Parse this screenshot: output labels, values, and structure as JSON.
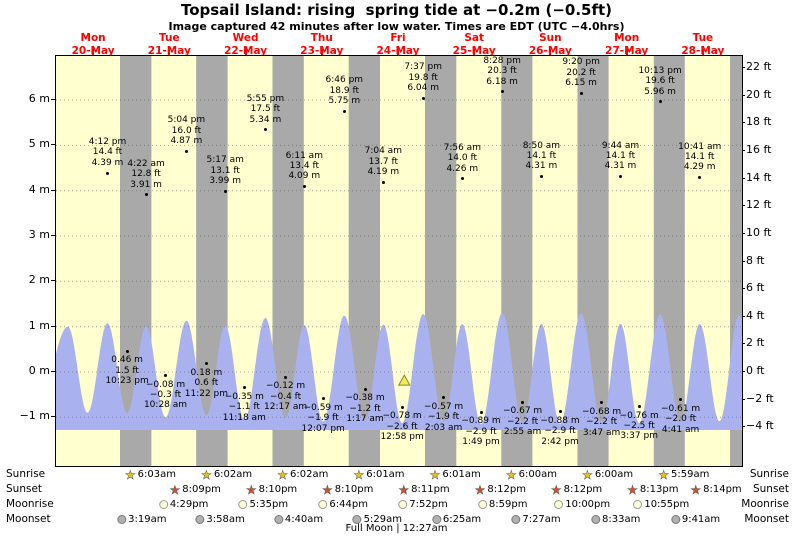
{
  "title": "Topsail Island: rising  spring tide at −0.2m (−0.5ft)",
  "subtitle": "Image captured 42 minutes after low water. Times are EDT (UTC −4.0hrs)",
  "colors": {
    "day_bg": "#ffffcf",
    "night_bg": "#a9a9a9",
    "wave": "#a9b2ef",
    "day_label_red": "#ff0000",
    "marker_yellow": "#f2ea5a",
    "sunrise_star": "#e8c227",
    "sunset_star": "#e8481f",
    "moonrise_fill": "#ffffd8",
    "moonset_fill": "#b0b0b0"
  },
  "day_labels": [
    {
      "name": "Mon",
      "date": "20-May"
    },
    {
      "name": "Tue",
      "date": "21-May"
    },
    {
      "name": "Wed",
      "date": "22-May"
    },
    {
      "name": "Thu",
      "date": "23-May"
    },
    {
      "name": "Fri",
      "date": "24-May"
    },
    {
      "name": "Sat",
      "date": "25-May"
    },
    {
      "name": "Sun",
      "date": "26-May"
    },
    {
      "name": "Mon",
      "date": "27-May"
    },
    {
      "name": "Tue",
      "date": "28-May"
    }
  ],
  "y_axis_left": [
    {
      "v": 6,
      "label": "6 m"
    },
    {
      "v": 5,
      "label": "5 m"
    },
    {
      "v": 4,
      "label": "4 m"
    },
    {
      "v": 3,
      "label": "3 m"
    },
    {
      "v": 2,
      "label": "2 m"
    },
    {
      "v": 1,
      "label": "1 m"
    },
    {
      "v": 0,
      "label": "0 m"
    },
    {
      "v": -1,
      "label": "−1 m"
    }
  ],
  "y_axis_right": [
    {
      "v": 22,
      "label": "22 ft"
    },
    {
      "v": 20,
      "label": "20 ft"
    },
    {
      "v": 18,
      "label": "18 ft"
    },
    {
      "v": 16,
      "label": "16 ft"
    },
    {
      "v": 14,
      "label": "14 ft"
    },
    {
      "v": 12,
      "label": "12 ft"
    },
    {
      "v": 10,
      "label": "10 ft"
    },
    {
      "v": 8,
      "label": "8 ft"
    },
    {
      "v": 6,
      "label": "6 ft"
    },
    {
      "v": 4,
      "label": "4 ft"
    },
    {
      "v": 2,
      "label": "2 ft"
    },
    {
      "v": 0,
      "label": "0 ft"
    },
    {
      "v": -2,
      "label": "−2 ft"
    },
    {
      "v": -4,
      "label": "−4 ft"
    }
  ],
  "chart_data": {
    "type": "area",
    "title": "Topsail Island tide heights, Mon 20-May to Tue 28-May",
    "x_unit": "hours from Mon 20-May 00:00 EDT",
    "y_unit_left": "m",
    "y_unit_right": "ft",
    "y_range_left_m": [
      -2.07,
      6.97
    ],
    "y_range_right_ft": [
      -6.8,
      22.9
    ],
    "tide_events": [
      {
        "t": 16.2,
        "type": "high",
        "time": "4:12 pm",
        "ft": "14.4 ft",
        "m": "4.39 m",
        "h": 4.39
      },
      {
        "t": 22.38,
        "type": "low",
        "time": "10:23 pm",
        "ft": "1.5 ft",
        "m": "0.46 m",
        "h": 0.46
      },
      {
        "t": 28.37,
        "type": "high",
        "time": "4:22 am",
        "ft": "12.8 ft",
        "m": "3.91 m",
        "h": 3.91
      },
      {
        "t": 34.47,
        "type": "low",
        "time": "10:28 am",
        "ft": "−0.3 ft",
        "m": "−0.08 m",
        "h": -0.08
      },
      {
        "t": 41.07,
        "type": "high",
        "time": "5:04 pm",
        "ft": "16.0 ft",
        "m": "4.87 m",
        "h": 4.87
      },
      {
        "t": 47.37,
        "type": "low",
        "time": "11:22 pm",
        "ft": "0.6 ft",
        "m": "0.18 m",
        "h": 0.18
      },
      {
        "t": 53.28,
        "type": "high",
        "time": "5:17 am",
        "ft": "13.1 ft",
        "m": "3.99 m",
        "h": 3.99
      },
      {
        "t": 59.3,
        "type": "low",
        "time": "11:18 am",
        "ft": "−1.1 ft",
        "m": "−0.35 m",
        "h": -0.35
      },
      {
        "t": 65.92,
        "type": "high",
        "time": "5:55 pm",
        "ft": "17.5 ft",
        "m": "5.34 m",
        "h": 5.34
      },
      {
        "t": 72.28,
        "type": "low",
        "time": "12:17 am",
        "ft": "−0.4 ft",
        "m": "−0.12 m",
        "h": -0.12
      },
      {
        "t": 78.18,
        "type": "high",
        "time": "6:11 am",
        "ft": "13.4 ft",
        "m": "4.09 m",
        "h": 4.09
      },
      {
        "t": 84.12,
        "type": "low",
        "time": "12:07 pm",
        "ft": "−1.9 ft",
        "m": "−0.59 m",
        "h": -0.59
      },
      {
        "t": 90.77,
        "type": "high",
        "time": "6:46 pm",
        "ft": "18.9 ft",
        "m": "5.75 m",
        "h": 5.75
      },
      {
        "t": 97.28,
        "type": "low",
        "time": "1:17 am",
        "ft": "−1.2 ft",
        "m": "−0.38 m",
        "h": -0.38
      },
      {
        "t": 103.07,
        "type": "high",
        "time": "7:04 am",
        "ft": "13.7 ft",
        "m": "4.19 m",
        "h": 4.19
      },
      {
        "t": 108.97,
        "type": "low",
        "time": "12:58 pm",
        "ft": "−2.6 ft",
        "m": "−0.78 m",
        "h": -0.78
      },
      {
        "t": 115.62,
        "type": "high",
        "time": "7:37 pm",
        "ft": "19.8 ft",
        "m": "6.04 m",
        "h": 6.04
      },
      {
        "t": 122.05,
        "type": "low",
        "time": "2:03 am",
        "ft": "−1.9 ft",
        "m": "−0.57 m",
        "h": -0.57
      },
      {
        "t": 127.93,
        "type": "high",
        "time": "7:56 am",
        "ft": "14.0 ft",
        "m": "4.26 m",
        "h": 4.26
      },
      {
        "t": 133.82,
        "type": "low",
        "time": "1:49 pm",
        "ft": "−2.9 ft",
        "m": "−0.89 m",
        "h": -0.89
      },
      {
        "t": 140.47,
        "type": "high",
        "time": "8:28 pm",
        "ft": "20.3 ft",
        "m": "6.18 m",
        "h": 6.18
      },
      {
        "t": 146.92,
        "type": "low",
        "time": "2:55 am",
        "ft": "−2.2 ft",
        "m": "−0.67 m",
        "h": -0.67
      },
      {
        "t": 152.83,
        "type": "high",
        "time": "8:50 am",
        "ft": "14.1 ft",
        "m": "4.31 m",
        "h": 4.31
      },
      {
        "t": 158.7,
        "type": "low",
        "time": "2:42 pm",
        "ft": "−2.9 ft",
        "m": "−0.88 m",
        "h": -0.88
      },
      {
        "t": 165.33,
        "type": "high",
        "time": "9:20 pm",
        "ft": "20.2 ft",
        "m": "6.15 m",
        "h": 6.15
      },
      {
        "t": 171.78,
        "type": "low",
        "time": "3:47 am",
        "ft": "−2.2 ft",
        "m": "−0.68 m",
        "h": -0.68
      },
      {
        "t": 177.73,
        "type": "high",
        "time": "9:44 am",
        "ft": "14.1 ft",
        "m": "4.31 m",
        "h": 4.31
      },
      {
        "t": 183.62,
        "type": "low",
        "time": "3:37 pm",
        "ft": "−2.5 ft",
        "m": "−0.76 m",
        "h": -0.76
      },
      {
        "t": 190.22,
        "type": "high",
        "time": "10:13 pm",
        "ft": "19.6 ft",
        "m": "5.96 m",
        "h": 5.96
      },
      {
        "t": 196.68,
        "type": "low",
        "time": "4:41 am",
        "ft": "−2.0 ft",
        "m": "−0.61 m",
        "h": -0.61
      },
      {
        "t": 202.68,
        "type": "high",
        "time": "10:41 am",
        "ft": "14.1 ft",
        "m": "4.29 m",
        "h": 4.29
      }
    ],
    "night_bands": [
      [
        20.15,
        30.05
      ],
      [
        44.15,
        54.03
      ],
      [
        68.17,
        78.03
      ],
      [
        92.17,
        102.02
      ],
      [
        116.18,
        126.02
      ],
      [
        140.2,
        150.0
      ],
      [
        164.2,
        174.0
      ],
      [
        188.22,
        197.98
      ],
      [
        212.23,
        216.0
      ]
    ],
    "current_marker": {
      "t": 109.67,
      "h": -0.2
    }
  },
  "astro": {
    "rows": [
      {
        "key": "sunrise",
        "label": "Sunrise",
        "icon": "sunrise-star-icon",
        "events": [
          {
            "t": 30.05,
            "time": "6:03am"
          },
          {
            "t": 54.03,
            "time": "6:02am"
          },
          {
            "t": 78.03,
            "time": "6:02am"
          },
          {
            "t": 102.02,
            "time": "6:01am"
          },
          {
            "t": 126.02,
            "time": "6:01am"
          },
          {
            "t": 150.0,
            "time": "6:00am"
          },
          {
            "t": 174.0,
            "time": "6:00am"
          },
          {
            "t": 197.98,
            "time": "5:59am"
          }
        ]
      },
      {
        "key": "sunset",
        "label": "Sunset",
        "icon": "sunset-star-icon",
        "events": [
          {
            "t": 44.15,
            "time": "8:09pm"
          },
          {
            "t": 68.17,
            "time": "8:10pm"
          },
          {
            "t": 92.17,
            "time": "8:10pm"
          },
          {
            "t": 116.18,
            "time": "8:11pm"
          },
          {
            "t": 140.2,
            "time": "8:12pm"
          },
          {
            "t": 164.2,
            "time": "8:12pm"
          },
          {
            "t": 188.22,
            "time": "8:13pm"
          },
          {
            "t": 212.23,
            "time": "8:14pm"
          }
        ]
      },
      {
        "key": "moonrise",
        "label": "Moonrise",
        "icon": "moonrise-circle-icon",
        "events": [
          {
            "t": 40.48,
            "time": "4:29pm"
          },
          {
            "t": 65.58,
            "time": "5:35pm"
          },
          {
            "t": 90.73,
            "time": "6:44pm"
          },
          {
            "t": 115.87,
            "time": "7:52pm"
          },
          {
            "t": 140.98,
            "time": "8:59pm"
          },
          {
            "t": 166.0,
            "time": "10:00pm"
          },
          {
            "t": 190.92,
            "time": "10:55pm"
          }
        ]
      },
      {
        "key": "moonset",
        "label": "Moonset",
        "icon": "moonset-circle-icon",
        "events": [
          {
            "t": 27.32,
            "time": "3:19am"
          },
          {
            "t": 51.97,
            "time": "3:58am"
          },
          {
            "t": 76.67,
            "time": "4:40am"
          },
          {
            "t": 101.48,
            "time": "5:29am"
          },
          {
            "t": 126.42,
            "time": "6:25am"
          },
          {
            "t": 151.45,
            "time": "7:27am"
          },
          {
            "t": 176.55,
            "time": "8:33am"
          },
          {
            "t": 201.68,
            "time": "9:41am"
          }
        ]
      }
    ],
    "footer": "Full Moon | 12:27am"
  }
}
